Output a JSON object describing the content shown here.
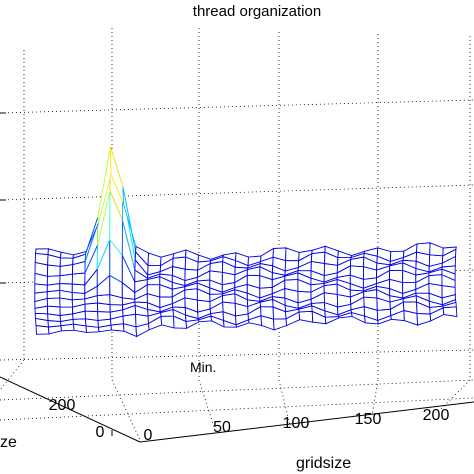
{
  "chart_data": {
    "type": "surface",
    "title": "thread organization",
    "xlabel": "gridsize",
    "ylabel_fragment": "ze",
    "annotation": "Min.",
    "x_ticks": [
      "0",
      "50",
      "100",
      "150",
      "200"
    ],
    "y_ticks": [
      "200",
      "0"
    ],
    "xlim": [
      0,
      230
    ],
    "ylim": [
      0,
      260
    ],
    "grid": true,
    "colormap": "jet",
    "surface": {
      "description_points": [
        {
          "gridsize": 0,
          "blocksize": 240,
          "z": 0.18
        },
        {
          "gridsize": 10,
          "blocksize": 200,
          "z": 0.22
        },
        {
          "gridsize": 15,
          "blocksize": 180,
          "z": 1.0
        },
        {
          "gridsize": 25,
          "blocksize": 150,
          "z": 0.08
        },
        {
          "gridsize": 100,
          "blocksize": 120,
          "z": 0.06
        },
        {
          "gridsize": 200,
          "blocksize": 100,
          "z": 0.05
        }
      ]
    }
  }
}
